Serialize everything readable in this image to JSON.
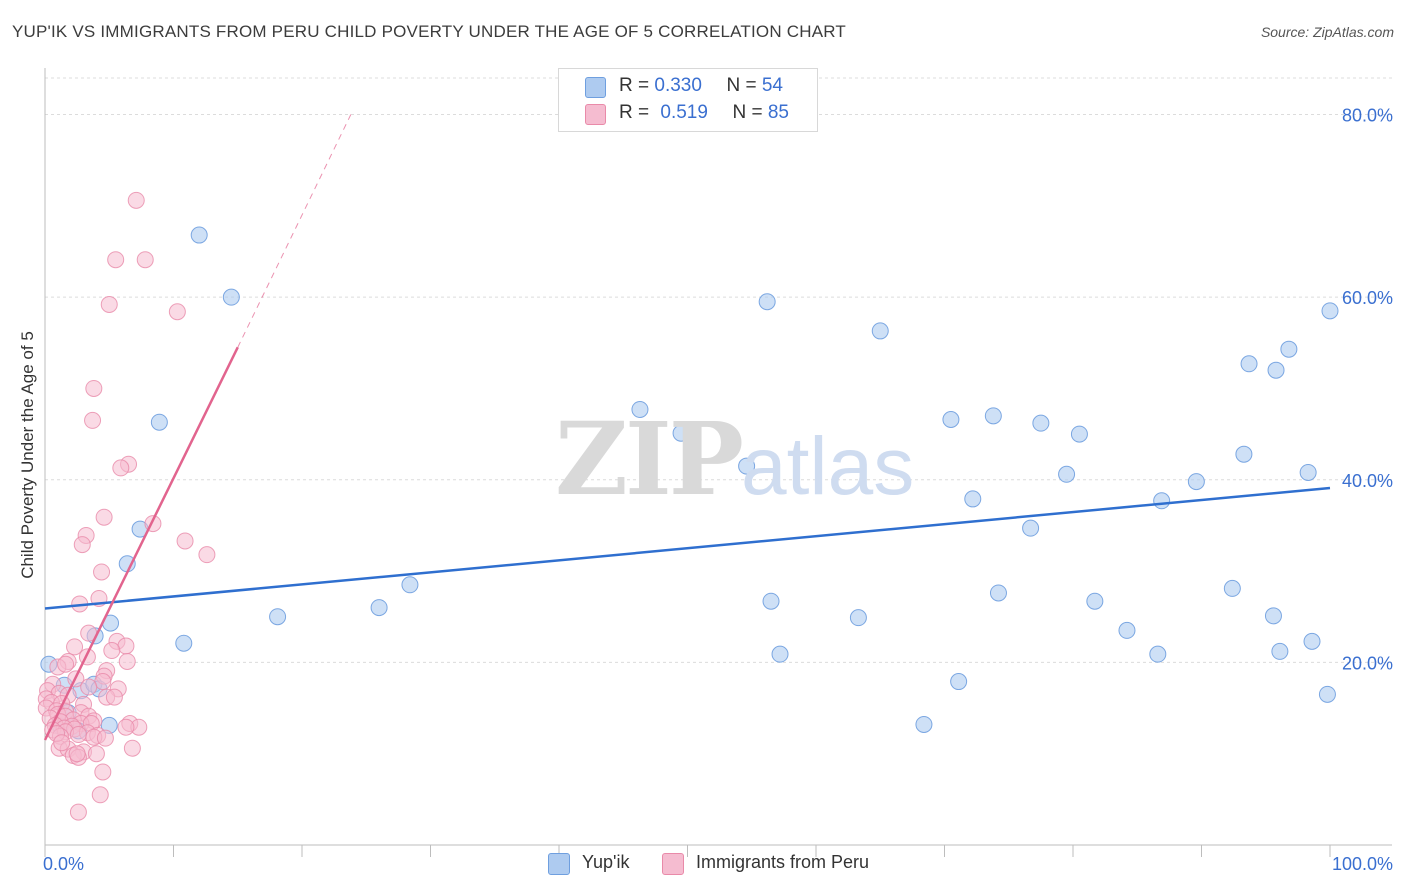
{
  "title": "YUP'IK VS IMMIGRANTS FROM PERU CHILD POVERTY UNDER THE AGE OF 5 CORRELATION CHART",
  "source": "Source: ZipAtlas.com",
  "watermark": {
    "zip": "ZIP",
    "atlas": "atlas"
  },
  "legend": {
    "rows": [
      {
        "r_label": "R = ",
        "r_value": "0.330",
        "n_label": "N = ",
        "n_value": "54"
      },
      {
        "r_label": "R = ",
        "r_value": "0.519",
        "n_label": "N = ",
        "n_value": "85"
      }
    ]
  },
  "bottom_legend": [
    "Yup'ik",
    "Immigrants from Peru"
  ],
  "colors": {
    "blue_fill": "#aecbf0",
    "blue_stroke": "#6f9fdf",
    "blue_line": "#2f6fcf",
    "pink_fill": "#f5bcd0",
    "pink_stroke": "#e98aa9",
    "pink_line": "#e2648e",
    "tick_label": "#3a6fd0",
    "grid": "#dcdcdc"
  },
  "chart_data": {
    "type": "scatter",
    "title": "YUP'IK VS IMMIGRANTS FROM PERU CHILD POVERTY UNDER THE AGE OF 5 CORRELATION CHART",
    "xlabel": "",
    "ylabel": "Child Poverty Under the Age of 5",
    "xlim": [
      0,
      100
    ],
    "ylim": [
      0,
      84
    ],
    "x_tick_labels": [
      "0.0%",
      "100.0%"
    ],
    "y_ticks": [
      20,
      40,
      60,
      80
    ],
    "y_tick_labels": [
      "20.0%",
      "40.0%",
      "60.0%",
      "80.0%"
    ],
    "series": [
      {
        "name": "Yup'ik",
        "R": 0.33,
        "N": 54,
        "trend": {
          "x0": 0,
          "y0": 25.9,
          "x1": 100,
          "y1": 39.1
        },
        "points": [
          [
            0.3,
            19.8
          ],
          [
            1.5,
            17.5
          ],
          [
            2.8,
            16.9
          ],
          [
            3.8,
            17.6
          ],
          [
            4.2,
            17.1
          ],
          [
            3.9,
            22.9
          ],
          [
            5.1,
            24.3
          ],
          [
            5.0,
            13.1
          ],
          [
            6.4,
            30.8
          ],
          [
            7.4,
            34.6
          ],
          [
            8.9,
            46.3
          ],
          [
            10.8,
            22.1
          ],
          [
            12.0,
            66.8
          ],
          [
            14.5,
            60.0
          ],
          [
            18.1,
            25.0
          ],
          [
            26.0,
            26.0
          ],
          [
            28.4,
            28.5
          ],
          [
            46.3,
            47.7
          ],
          [
            49.5,
            45.1
          ],
          [
            54.6,
            41.5
          ],
          [
            56.2,
            59.5
          ],
          [
            56.5,
            26.7
          ],
          [
            57.2,
            20.9
          ],
          [
            63.3,
            24.9
          ],
          [
            65.0,
            56.3
          ],
          [
            68.4,
            13.2
          ],
          [
            70.5,
            46.6
          ],
          [
            71.1,
            17.9
          ],
          [
            72.2,
            37.9
          ],
          [
            73.8,
            47.0
          ],
          [
            74.2,
            27.6
          ],
          [
            76.7,
            34.7
          ],
          [
            77.5,
            46.2
          ],
          [
            79.5,
            40.6
          ],
          [
            80.5,
            45.0
          ],
          [
            81.7,
            26.7
          ],
          [
            84.2,
            23.5
          ],
          [
            86.6,
            20.9
          ],
          [
            86.9,
            37.7
          ],
          [
            89.6,
            39.8
          ],
          [
            92.4,
            28.1
          ],
          [
            93.3,
            42.8
          ],
          [
            93.7,
            52.7
          ],
          [
            95.6,
            25.1
          ],
          [
            95.8,
            52.0
          ],
          [
            96.1,
            21.2
          ],
          [
            96.8,
            54.3
          ],
          [
            98.3,
            40.8
          ],
          [
            98.6,
            22.3
          ],
          [
            99.8,
            16.5
          ],
          [
            100.0,
            58.5
          ],
          [
            1.2,
            13.0
          ],
          [
            2.6,
            12.5
          ],
          [
            1.8,
            14.5
          ]
        ]
      },
      {
        "name": "Immigrants from Peru",
        "R": 0.519,
        "N": 85,
        "trend": {
          "x0": 0,
          "y0": 11.5,
          "x1": 15.0,
          "y1": 54.5
        },
        "trend_dashed": {
          "x0": 15.0,
          "y0": 54.5,
          "x1": 23.8,
          "y1": 80.0
        },
        "points": [
          [
            7.1,
            70.6
          ],
          [
            5.5,
            64.1
          ],
          [
            7.8,
            64.1
          ],
          [
            5.0,
            59.2
          ],
          [
            10.3,
            58.4
          ],
          [
            3.8,
            50.0
          ],
          [
            3.7,
            46.5
          ],
          [
            6.5,
            41.7
          ],
          [
            5.9,
            41.3
          ],
          [
            8.4,
            35.2
          ],
          [
            4.6,
            35.9
          ],
          [
            3.2,
            33.9
          ],
          [
            2.9,
            32.9
          ],
          [
            10.9,
            33.3
          ],
          [
            12.6,
            31.8
          ],
          [
            4.4,
            29.9
          ],
          [
            4.2,
            27.0
          ],
          [
            2.7,
            26.4
          ],
          [
            3.4,
            23.2
          ],
          [
            5.6,
            22.3
          ],
          [
            6.3,
            21.8
          ],
          [
            2.3,
            21.7
          ],
          [
            5.2,
            21.3
          ],
          [
            3.3,
            20.6
          ],
          [
            1.8,
            20.1
          ],
          [
            6.4,
            20.1
          ],
          [
            1.0,
            19.5
          ],
          [
            1.6,
            19.8
          ],
          [
            4.8,
            19.1
          ],
          [
            4.6,
            18.5
          ],
          [
            2.4,
            18.2
          ],
          [
            4.5,
            17.9
          ],
          [
            0.6,
            17.6
          ],
          [
            3.4,
            17.3
          ],
          [
            5.7,
            17.1
          ],
          [
            0.2,
            16.9
          ],
          [
            1.1,
            16.6
          ],
          [
            1.8,
            16.4
          ],
          [
            4.8,
            16.2
          ],
          [
            5.4,
            16.2
          ],
          [
            0.1,
            16.0
          ],
          [
            0.5,
            15.6
          ],
          [
            1.3,
            15.5
          ],
          [
            3.0,
            15.4
          ],
          [
            0.1,
            15.0
          ],
          [
            0.9,
            14.7
          ],
          [
            1.6,
            14.6
          ],
          [
            2.8,
            14.5
          ],
          [
            1.0,
            14.3
          ],
          [
            1.6,
            14.1
          ],
          [
            3.4,
            14.1
          ],
          [
            0.4,
            13.9
          ],
          [
            2.2,
            13.7
          ],
          [
            3.8,
            13.6
          ],
          [
            1.2,
            13.5
          ],
          [
            2.8,
            13.3
          ],
          [
            3.6,
            13.3
          ],
          [
            6.6,
            13.3
          ],
          [
            0.8,
            13.1
          ],
          [
            2.1,
            13.0
          ],
          [
            7.3,
            12.9
          ],
          [
            1.5,
            12.8
          ],
          [
            2.3,
            12.7
          ],
          [
            0.6,
            12.6
          ],
          [
            1.6,
            12.4
          ],
          [
            3.3,
            12.3
          ],
          [
            2.6,
            12.1
          ],
          [
            4.1,
            12.0
          ],
          [
            1.2,
            11.9
          ],
          [
            3.8,
            11.8
          ],
          [
            4.7,
            11.7
          ],
          [
            6.3,
            12.9
          ],
          [
            1.1,
            10.6
          ],
          [
            6.8,
            10.6
          ],
          [
            1.8,
            10.5
          ],
          [
            3.0,
            10.2
          ],
          [
            4.0,
            10.0
          ],
          [
            2.2,
            9.8
          ],
          [
            2.6,
            9.6
          ],
          [
            2.5,
            10.0
          ],
          [
            4.5,
            8.0
          ],
          [
            4.3,
            5.5
          ],
          [
            2.6,
            3.6
          ],
          [
            0.9,
            12.2
          ],
          [
            1.3,
            11.2
          ]
        ]
      }
    ]
  }
}
